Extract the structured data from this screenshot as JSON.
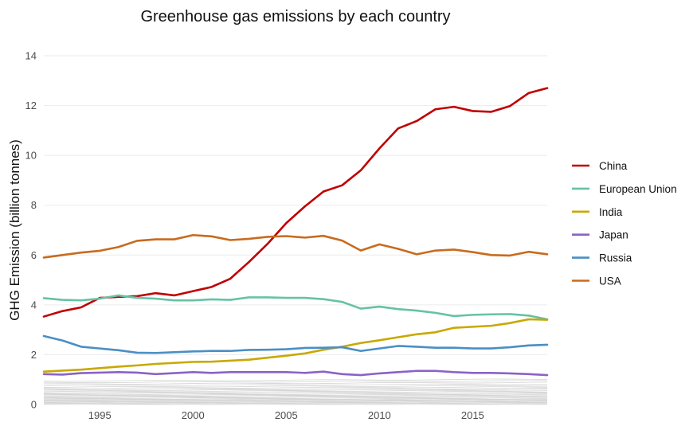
{
  "chart_data": {
    "type": "line",
    "title": "Greenhouse gas emissions by each country",
    "xlabel": "",
    "ylabel": "GHG Emission (billion tonnes)",
    "xlim": [
      1992,
      2019
    ],
    "ylim": [
      0,
      14
    ],
    "x_ticks": [
      1995,
      2000,
      2005,
      2010,
      2015
    ],
    "y_ticks": [
      0,
      2,
      4,
      6,
      8,
      10,
      12,
      14
    ],
    "grid": true,
    "legend_position": "right",
    "x": [
      1992,
      1993,
      1994,
      1995,
      1996,
      1997,
      1998,
      1999,
      2000,
      2001,
      2002,
      2003,
      2004,
      2005,
      2006,
      2007,
      2008,
      2009,
      2010,
      2011,
      2012,
      2013,
      2014,
      2015,
      2016,
      2017,
      2018,
      2019
    ],
    "series": [
      {
        "name": "China",
        "color": "#c00000",
        "values": [
          3.53,
          3.75,
          3.9,
          4.28,
          4.32,
          4.35,
          4.47,
          4.38,
          4.55,
          4.72,
          5.05,
          5.72,
          6.45,
          7.28,
          7.95,
          8.55,
          8.8,
          9.4,
          10.28,
          11.08,
          11.38,
          11.85,
          11.95,
          11.78,
          11.75,
          11.98,
          12.5,
          12.7
        ]
      },
      {
        "name": "European Union",
        "color": "#66c2a5",
        "values": [
          4.27,
          4.2,
          4.18,
          4.25,
          4.38,
          4.28,
          4.25,
          4.18,
          4.18,
          4.22,
          4.2,
          4.3,
          4.3,
          4.28,
          4.28,
          4.23,
          4.12,
          3.85,
          3.93,
          3.83,
          3.77,
          3.68,
          3.55,
          3.6,
          3.62,
          3.63,
          3.57,
          3.42
        ]
      },
      {
        "name": "India",
        "color": "#c9a800",
        "values": [
          1.32,
          1.36,
          1.4,
          1.46,
          1.52,
          1.57,
          1.63,
          1.67,
          1.71,
          1.72,
          1.76,
          1.8,
          1.88,
          1.96,
          2.05,
          2.2,
          2.32,
          2.47,
          2.58,
          2.7,
          2.82,
          2.9,
          3.08,
          3.12,
          3.16,
          3.27,
          3.42,
          3.4
        ]
      },
      {
        "name": "Japan",
        "color": "#8b62c6",
        "values": [
          1.22,
          1.2,
          1.26,
          1.28,
          1.3,
          1.28,
          1.22,
          1.26,
          1.3,
          1.27,
          1.3,
          1.3,
          1.3,
          1.3,
          1.27,
          1.32,
          1.22,
          1.18,
          1.25,
          1.3,
          1.35,
          1.35,
          1.3,
          1.27,
          1.27,
          1.25,
          1.22,
          1.18
        ]
      },
      {
        "name": "Russia",
        "color": "#4a8fc4",
        "values": [
          2.75,
          2.57,
          2.32,
          2.25,
          2.18,
          2.08,
          2.07,
          2.1,
          2.13,
          2.15,
          2.15,
          2.19,
          2.2,
          2.22,
          2.27,
          2.28,
          2.3,
          2.15,
          2.25,
          2.35,
          2.32,
          2.28,
          2.28,
          2.25,
          2.25,
          2.3,
          2.37,
          2.4
        ]
      },
      {
        "name": "USA",
        "color": "#c86b1e",
        "values": [
          5.9,
          6.0,
          6.1,
          6.17,
          6.32,
          6.57,
          6.63,
          6.63,
          6.8,
          6.75,
          6.6,
          6.65,
          6.73,
          6.76,
          6.7,
          6.77,
          6.58,
          6.18,
          6.43,
          6.25,
          6.03,
          6.18,
          6.22,
          6.12,
          6.0,
          5.98,
          6.13,
          6.03
        ]
      }
    ],
    "other_countries": {
      "color": "#d4d4d4",
      "baselines": [
        0.02,
        0.04,
        0.06,
        0.08,
        0.1,
        0.12,
        0.14,
        0.16,
        0.18,
        0.2,
        0.22,
        0.25,
        0.28,
        0.31,
        0.34,
        0.37,
        0.4,
        0.44,
        0.48,
        0.52,
        0.56,
        0.6,
        0.65,
        0.7,
        0.76,
        0.82,
        0.88,
        0.94
      ]
    }
  }
}
